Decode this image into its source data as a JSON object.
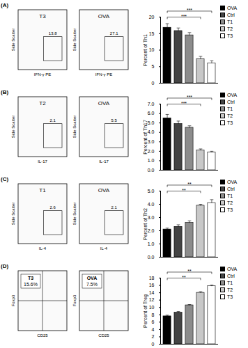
{
  "chart_data": [
    {
      "type": "bar",
      "title": "(A)",
      "y_label": "Percent of Th1",
      "categories": [
        "OVA",
        "Ctrl",
        "T1",
        "T2",
        "T3"
      ],
      "values": [
        16.8,
        15.8,
        14.5,
        7.3,
        6.0
      ],
      "errors": [
        1.2,
        0.9,
        0.8,
        0.8,
        0.8
      ],
      "colors": [
        "#000000",
        "#444444",
        "#8c8c8c",
        "#c8c8c8",
        "#ffffff"
      ],
      "ylim": [
        0,
        20
      ],
      "yticks": [
        0,
        5,
        10,
        15,
        20
      ],
      "tick_labels": "y",
      "legend": "top-right",
      "significance": [
        {
          "from": "OVA",
          "to": "T2",
          "label": "***"
        },
        {
          "from": "OVA",
          "to": "T3",
          "label": "***"
        }
      ],
      "flow_plots": [
        {
          "title": "T3",
          "value": 13.8,
          "x_label": "IFN-γ PE",
          "y_label": "Side Scatter"
        },
        {
          "title": "OVA",
          "value": 27.1,
          "x_label": "IFN-γ PE",
          "y_label": "Side Scatter"
        }
      ]
    },
    {
      "type": "bar",
      "title": "(B)",
      "y_label": "Percent of Th17",
      "categories": [
        "OVA",
        "Ctrl",
        "T1",
        "T2",
        "T3"
      ],
      "values": [
        5.5,
        4.9,
        4.5,
        2.1,
        1.9
      ],
      "errors": [
        0.4,
        0.3,
        0.2,
        0.15,
        0.1
      ],
      "colors": [
        "#000000",
        "#444444",
        "#8c8c8c",
        "#c8c8c8",
        "#ffffff"
      ],
      "ylim": [
        0,
        7
      ],
      "yticks": [
        0,
        1,
        2,
        3,
        4,
        5,
        6,
        7
      ],
      "tick_labels": "y",
      "legend": "top-right",
      "significance": [
        {
          "from": "OVA",
          "to": "T2",
          "label": "***"
        },
        {
          "from": "OVA",
          "to": "T3",
          "label": "***"
        }
      ],
      "flow_plots": [
        {
          "title": "T2",
          "value": 2.1,
          "x_label": "IL-17",
          "y_label": "Side Scatter"
        },
        {
          "title": "OVA",
          "value": 5.5,
          "x_label": "IL-17",
          "y_label": "Side Scatter"
        }
      ]
    },
    {
      "type": "bar",
      "title": "(C)",
      "y_label": "Percent of Th2",
      "categories": [
        "OVA",
        "Ctrl",
        "T1",
        "T2",
        "T3"
      ],
      "values": [
        2.1,
        2.3,
        2.6,
        3.9,
        4.1
      ],
      "errors": [
        0.1,
        0.15,
        0.15,
        0.1,
        0.25
      ],
      "colors": [
        "#000000",
        "#444444",
        "#8c8c8c",
        "#c8c8c8",
        "#ffffff"
      ],
      "ylim": [
        0,
        5
      ],
      "yticks": [
        0,
        1,
        2,
        3,
        4,
        5
      ],
      "tick_labels": "y",
      "legend": "top-right",
      "significance": [
        {
          "from": "OVA",
          "to": "T2",
          "label": "**"
        },
        {
          "from": "OVA",
          "to": "T3",
          "label": "**"
        }
      ],
      "flow_plots": [
        {
          "title": "T1",
          "value": 2.6,
          "x_label": "IL-4",
          "y_label": "Side Scatter"
        },
        {
          "title": "OVA",
          "value": 2.1,
          "x_label": "IL-4",
          "y_label": "Side Scatter"
        }
      ]
    },
    {
      "type": "bar",
      "title": "(D)",
      "y_label": "Percent of Treg",
      "categories": [
        "OVA",
        "Ctrl",
        "T1",
        "T2",
        "T3"
      ],
      "values": [
        7.6,
        8.6,
        10.6,
        14.0,
        15.8
      ],
      "errors": [
        0.3,
        0.3,
        0.2,
        0.3,
        0.3
      ],
      "colors": [
        "#000000",
        "#444444",
        "#8c8c8c",
        "#c8c8c8",
        "#ffffff"
      ],
      "ylim": [
        0,
        18
      ],
      "yticks": [
        0,
        2,
        4,
        6,
        8,
        10,
        12,
        14,
        16,
        18
      ],
      "tick_labels": "y",
      "legend": "top-right",
      "significance": [
        {
          "from": "OVA",
          "to": "T2",
          "label": "**"
        },
        {
          "from": "OVA",
          "to": "T3",
          "label": "**"
        }
      ],
      "flow_plots": [
        {
          "title": "T3",
          "value": 15.6,
          "value_label": "15.6%",
          "x_label": "CD25",
          "y_label": "Foxp3",
          "quadrant": true
        },
        {
          "title": "OVA",
          "value": 7.5,
          "value_label": "7.5%",
          "x_label": "CD25",
          "y_label": "Foxp3",
          "quadrant": true
        }
      ]
    }
  ]
}
